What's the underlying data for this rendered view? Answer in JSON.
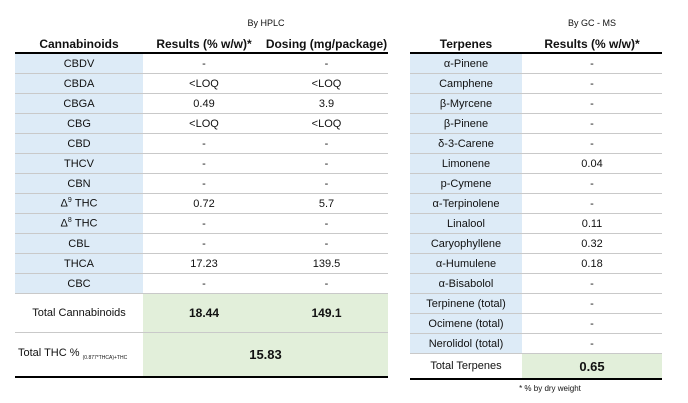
{
  "cannabinoids": {
    "method": "By HPLC",
    "headers": {
      "name": "Cannabinoids",
      "results": "Results (% w/w)*",
      "dosing": "Dosing (mg/package)"
    },
    "rows": [
      {
        "name": "CBDV",
        "results": "-",
        "dosing": "-"
      },
      {
        "name": "CBDA",
        "results": "<LOQ",
        "dosing": "<LOQ"
      },
      {
        "name": "CBGA",
        "results": "0.49",
        "dosing": "3.9"
      },
      {
        "name": "CBG",
        "results": "<LOQ",
        "dosing": "<LOQ"
      },
      {
        "name": "CBD",
        "results": "-",
        "dosing": "-"
      },
      {
        "name": "THCV",
        "results": "-",
        "dosing": "-"
      },
      {
        "name": "CBN",
        "results": "-",
        "dosing": "-"
      },
      {
        "name_prefix": "Δ",
        "name_sup": "9",
        "name_suffix": " THC",
        "results": "0.72",
        "dosing": "5.7"
      },
      {
        "name_prefix": "Δ",
        "name_sup": "8",
        "name_suffix": " THC",
        "results": "-",
        "dosing": "-"
      },
      {
        "name": "CBL",
        "results": "-",
        "dosing": "-"
      },
      {
        "name": "THCA",
        "results": "17.23",
        "dosing": "139.5"
      },
      {
        "name": "CBC",
        "results": "-",
        "dosing": "-"
      }
    ],
    "total": {
      "label": "Total Cannabinoids",
      "results": "18.44",
      "dosing": "149.1"
    },
    "total_thc": {
      "label": "Total THC %",
      "formula": "(0.877*THCA)+THC",
      "value": "15.83"
    }
  },
  "terpenes": {
    "method": "By GC - MS",
    "headers": {
      "name": "Terpenes",
      "results": "Results (% w/w)*"
    },
    "rows": [
      {
        "name": "α-Pinene",
        "results": "-"
      },
      {
        "name": "Camphene",
        "results": "-"
      },
      {
        "name": "β-Myrcene",
        "results": "-"
      },
      {
        "name": "β-Pinene",
        "results": "-"
      },
      {
        "name": "δ-3-Carene",
        "results": "-"
      },
      {
        "name": "Limonene",
        "results": "0.04"
      },
      {
        "name": "p-Cymene",
        "results": "-"
      },
      {
        "name": "α-Terpinolene",
        "results": "-"
      },
      {
        "name": "Linalool",
        "results": "0.11"
      },
      {
        "name": "Caryophyllene",
        "results": "0.32"
      },
      {
        "name": "α-Humulene",
        "results": "0.18"
      },
      {
        "name": "α-Bisabolol",
        "results": "-"
      },
      {
        "name": "Terpinene (total)",
        "results": "-"
      },
      {
        "name": "Ocimene (total)",
        "results": "-"
      },
      {
        "name": "Nerolidol (total)",
        "results": "-"
      }
    ],
    "total": {
      "label": "Total Terpenes",
      "results": "0.65"
    }
  },
  "footnote": "* % by dry weight"
}
